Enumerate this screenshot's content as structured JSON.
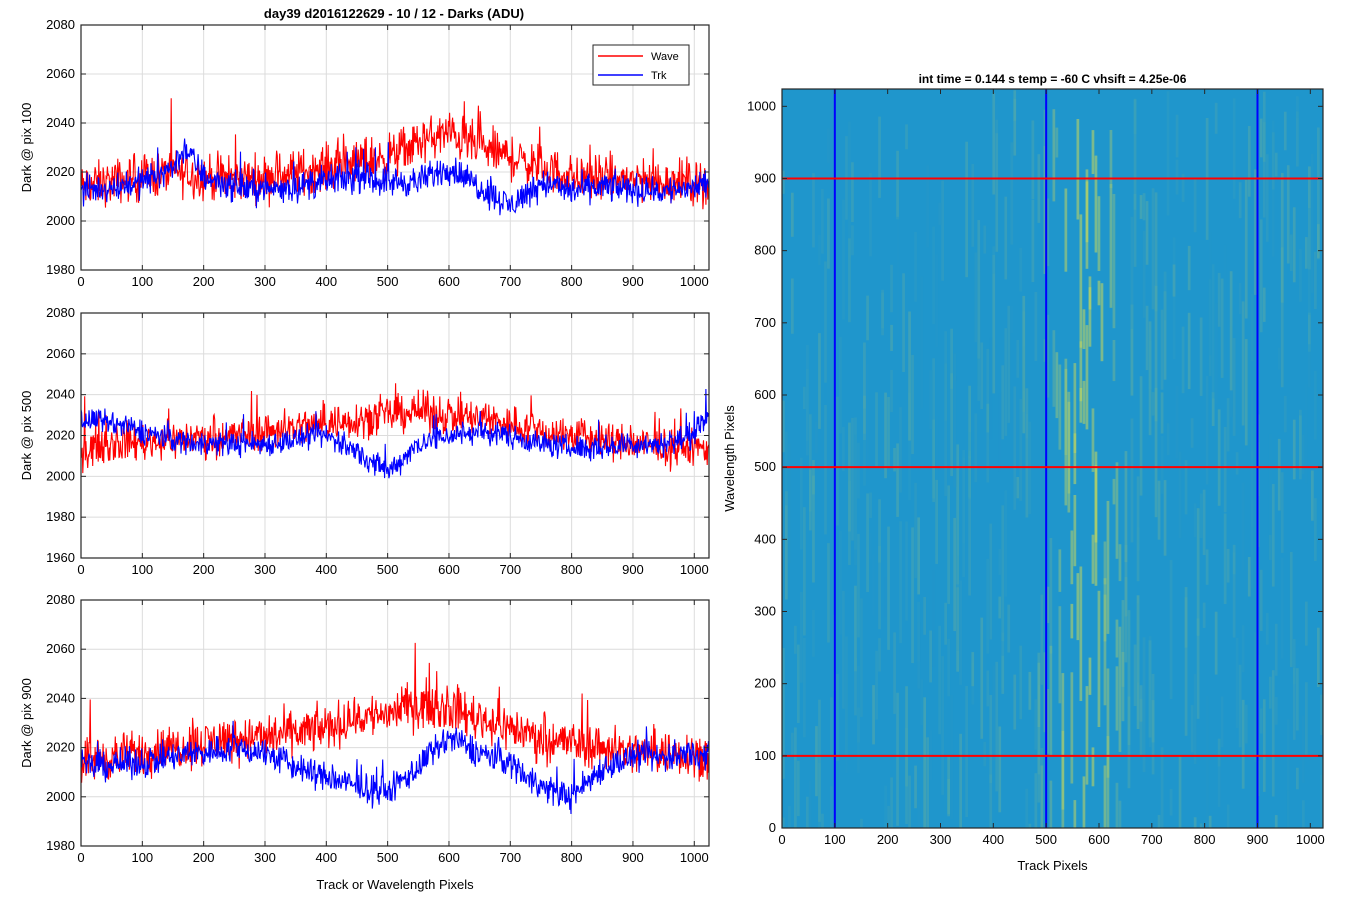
{
  "figure": {
    "title": "day39 d2016122629 - 10 / 12 - Darks (ADU)",
    "x_axis_label": "Track or Wavelength Pixels"
  },
  "legend": {
    "entries": [
      {
        "name": "Wave",
        "color": "#ff0000"
      },
      {
        "name": "Trk",
        "color": "#0000ff"
      }
    ],
    "placement": "top-right of first subplot"
  },
  "colors": {
    "wave": "#ff0000",
    "trk": "#0000ff",
    "grid": "#dcdcdc",
    "axes": "#262626",
    "image_base": "#1f96cc",
    "image_high": "#c8d85a"
  },
  "chart_data": [
    {
      "type": "line",
      "ylabel": "Dark @ pix 100",
      "xlim": [
        0,
        1024
      ],
      "ylim": [
        1980,
        2080
      ],
      "xticks": [
        0,
        100,
        200,
        300,
        400,
        500,
        600,
        700,
        800,
        900,
        1000
      ],
      "yticks": [
        1980,
        2000,
        2020,
        2040,
        2060,
        2080
      ],
      "grid": true,
      "series": [
        {
          "name": "Wave",
          "color": "#ff0000",
          "x": [
            0,
            50,
            100,
            150,
            200,
            250,
            300,
            350,
            400,
            450,
            500,
            550,
            600,
            650,
            700,
            750,
            800,
            850,
            900,
            950,
            1000,
            1024
          ],
          "y": [
            2014,
            2016,
            2018,
            2020,
            2018,
            2017,
            2018,
            2020,
            2022,
            2024,
            2026,
            2032,
            2036,
            2030,
            2026,
            2022,
            2018,
            2017,
            2017,
            2016,
            2016,
            2015
          ],
          "noise": 9
        },
        {
          "name": "Trk",
          "color": "#0000ff",
          "x": [
            0,
            50,
            100,
            150,
            170,
            200,
            250,
            300,
            350,
            400,
            450,
            500,
            550,
            600,
            650,
            700,
            750,
            800,
            850,
            900,
            950,
            1000,
            1024
          ],
          "y": [
            2012,
            2014,
            2016,
            2022,
            2030,
            2018,
            2014,
            2013,
            2014,
            2016,
            2018,
            2016,
            2016,
            2022,
            2014,
            2006,
            2016,
            2012,
            2014,
            2013,
            2012,
            2014,
            2014
          ],
          "noise": 6
        }
      ]
    },
    {
      "type": "line",
      "ylabel": "Dark @ pix 500",
      "xlim": [
        0,
        1024
      ],
      "ylim": [
        1960,
        2080
      ],
      "xticks": [
        0,
        100,
        200,
        300,
        400,
        500,
        600,
        700,
        800,
        900,
        1000
      ],
      "yticks": [
        1960,
        1980,
        2000,
        2020,
        2040,
        2060,
        2080
      ],
      "grid": true,
      "series": [
        {
          "name": "Wave",
          "color": "#ff0000",
          "x": [
            0,
            50,
            100,
            150,
            200,
            250,
            300,
            350,
            400,
            450,
            500,
            550,
            600,
            650,
            700,
            750,
            800,
            850,
            900,
            950,
            1000,
            1024
          ],
          "y": [
            2014,
            2016,
            2017,
            2018,
            2019,
            2020,
            2022,
            2024,
            2026,
            2028,
            2030,
            2032,
            2030,
            2028,
            2026,
            2022,
            2020,
            2018,
            2016,
            2014,
            2014,
            2014
          ],
          "noise": 9
        },
        {
          "name": "Trk",
          "color": "#0000ff",
          "x": [
            0,
            50,
            100,
            150,
            200,
            250,
            300,
            350,
            400,
            450,
            500,
            550,
            600,
            650,
            700,
            750,
            800,
            850,
            900,
            950,
            1000,
            1024
          ],
          "y": [
            2028,
            2026,
            2022,
            2018,
            2016,
            2016,
            2016,
            2018,
            2020,
            2012,
            2002,
            2016,
            2020,
            2022,
            2020,
            2016,
            2014,
            2014,
            2016,
            2016,
            2020,
            2032
          ],
          "noise": 6
        }
      ]
    },
    {
      "type": "line",
      "ylabel": "Dark @ pix 900",
      "xlabel": "Track or Wavelength Pixels",
      "xlim": [
        0,
        1024
      ],
      "ylim": [
        1980,
        2080
      ],
      "xticks": [
        0,
        100,
        200,
        300,
        400,
        500,
        600,
        700,
        800,
        900,
        1000
      ],
      "yticks": [
        1980,
        2000,
        2020,
        2040,
        2060,
        2080
      ],
      "grid": true,
      "series": [
        {
          "name": "Wave",
          "color": "#ff0000",
          "x": [
            0,
            50,
            100,
            150,
            200,
            250,
            300,
            350,
            400,
            450,
            500,
            550,
            600,
            650,
            700,
            750,
            800,
            850,
            900,
            950,
            1000,
            1024
          ],
          "y": [
            2015,
            2016,
            2018,
            2020,
            2022,
            2024,
            2024,
            2026,
            2028,
            2032,
            2034,
            2038,
            2036,
            2032,
            2028,
            2024,
            2022,
            2020,
            2018,
            2018,
            2018,
            2016
          ],
          "noise": 9
        },
        {
          "name": "Trk",
          "color": "#0000ff",
          "x": [
            0,
            50,
            100,
            150,
            200,
            250,
            300,
            350,
            400,
            450,
            500,
            550,
            600,
            650,
            700,
            750,
            800,
            850,
            900,
            950,
            1000,
            1024
          ],
          "y": [
            2012,
            2013,
            2014,
            2016,
            2018,
            2020,
            2018,
            2012,
            2008,
            2004,
            2002,
            2012,
            2024,
            2018,
            2014,
            2004,
            2000,
            2012,
            2016,
            2016,
            2018,
            2016
          ],
          "noise": 6
        }
      ]
    },
    {
      "type": "heatmap",
      "title": "int time = 0.144 s   temp = -60 C   vhsift = 4.25e-06",
      "xlabel": "Track Pixels",
      "ylabel": "Wavelength Pixels",
      "xlim": [
        0,
        1024
      ],
      "ylim": [
        0,
        1024
      ],
      "xticks": [
        0,
        100,
        200,
        300,
        400,
        500,
        600,
        700,
        800,
        900,
        1000
      ],
      "yticks": [
        0,
        100,
        200,
        300,
        400,
        500,
        600,
        700,
        800,
        900,
        1000
      ],
      "bright_band": {
        "center": 575,
        "width": 60
      },
      "vertical_lines": {
        "color": "#0000ff",
        "x": [
          100,
          500,
          900
        ]
      },
      "horizontal_lines": {
        "color": "#ff0000",
        "y": [
          100,
          500,
          900
        ]
      }
    }
  ]
}
